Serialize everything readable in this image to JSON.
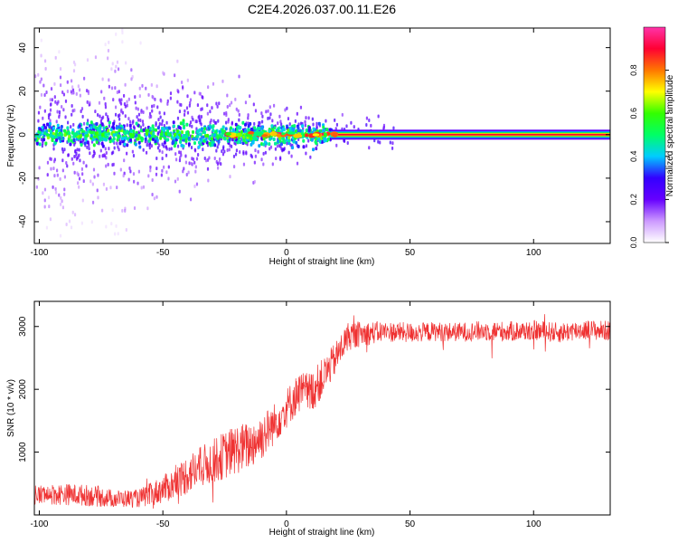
{
  "figure": {
    "title": "C2E4.2026.037.00.11.E26"
  },
  "chart_data": [
    {
      "type": "heatmap",
      "xlabel": "Height of straight line (km)",
      "ylabel": "Frequency (Hz)",
      "xlim": [
        -102,
        131
      ],
      "ylim": [
        -50,
        49
      ],
      "xticks": [
        -100,
        -50,
        0,
        50,
        100
      ],
      "yticks": [
        -40,
        -20,
        0,
        20,
        40
      ],
      "colorbar": {
        "label": "Normalized spectral amplitude",
        "range": [
          0,
          1
        ],
        "ticks": [
          0.0,
          0.2,
          0.4,
          0.6,
          0.8
        ],
        "colormap": [
          "#ffffff",
          "#cc99ff",
          "#6600ff",
          "#3300ff",
          "#00ccff",
          "#00ff66",
          "#33ff00",
          "#ffff00",
          "#ff7700",
          "#ff0033",
          "#ff33aa"
        ]
      },
      "ridge": {
        "center_frequency": 0,
        "strong_from_x": 18,
        "strong_to_x": 131
      }
    },
    {
      "type": "line",
      "xlabel": "Height of straight line (km)",
      "ylabel": "SNR (10 * v/v)",
      "xlim": [
        -102,
        131
      ],
      "ylim": [
        0,
        3400
      ],
      "xticks": [
        -100,
        -50,
        0,
        50,
        100
      ],
      "yticks": [
        1000,
        2000,
        3000
      ],
      "color": "#ef3232",
      "series_profile": {
        "x": [
          -102,
          -90,
          -80,
          -70,
          -60,
          -55,
          -45,
          -40,
          -30,
          -25,
          -20,
          -15,
          -10,
          -5,
          0,
          5,
          10,
          15,
          20,
          25,
          30,
          40,
          50,
          60,
          70,
          80,
          90,
          100,
          110,
          120,
          131
        ],
        "y": [
          320,
          330,
          310,
          260,
          260,
          320,
          500,
          650,
          850,
          950,
          1050,
          1100,
          1250,
          1450,
          1700,
          1950,
          1950,
          2200,
          2500,
          2850,
          2880,
          2920,
          2900,
          2920,
          2910,
          2930,
          2920,
          2940,
          2900,
          2950,
          2930
        ],
        "spread": [
          160,
          170,
          170,
          140,
          140,
          190,
          250,
          320,
          350,
          380,
          400,
          380,
          380,
          330,
          320,
          320,
          340,
          300,
          260,
          230,
          200,
          160,
          160,
          150,
          150,
          160,
          160,
          160,
          160,
          160,
          160
        ]
      }
    }
  ]
}
